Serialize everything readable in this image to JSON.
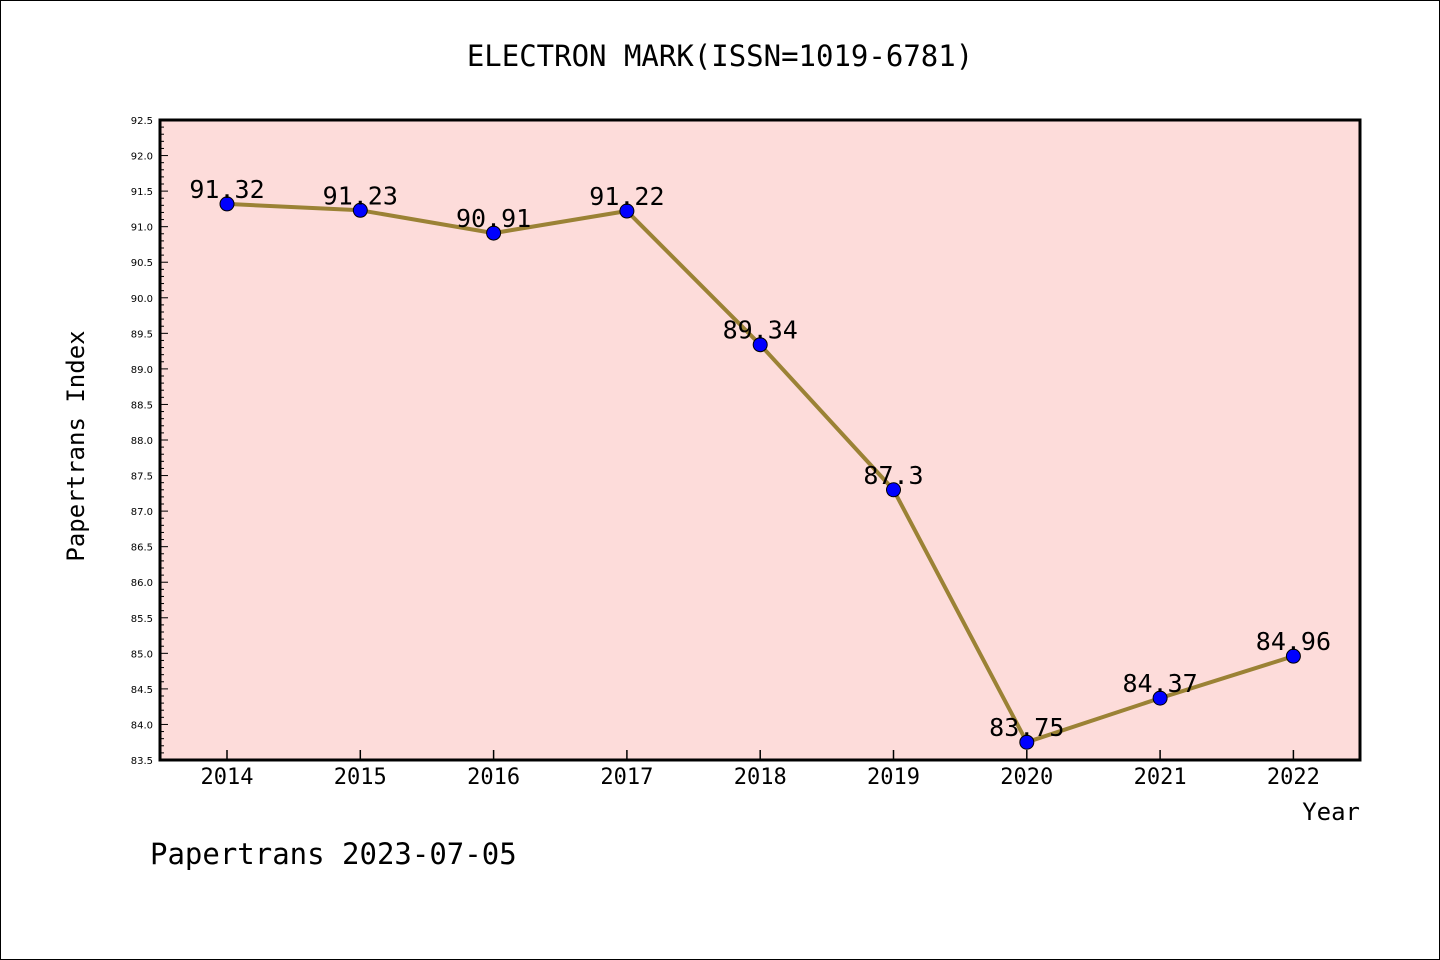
{
  "chart_data": {
    "type": "line",
    "title": "ELECTRON MARK(ISSN=1019-6781)",
    "xlabel": "Year",
    "ylabel": "Papertrans Index",
    "ylim": [
      83.5,
      92.5
    ],
    "y_ticks": [
      "83.5",
      "84.0",
      "84.5",
      "85.0",
      "85.5",
      "86.0",
      "86.5",
      "87.0",
      "87.5",
      "88.0",
      "88.5",
      "89.0",
      "89.5",
      "90.0",
      "90.5",
      "91.0",
      "91.5",
      "92.0",
      "92.5"
    ],
    "categories": [
      "2014",
      "2015",
      "2016",
      "2017",
      "2018",
      "2019",
      "2020",
      "2021",
      "2022"
    ],
    "values": [
      91.32,
      91.23,
      90.91,
      91.22,
      89.34,
      87.3,
      83.75,
      84.37,
      84.96
    ],
    "value_labels": [
      "91.32",
      "91.23",
      "90.91",
      "91.22",
      "89.34",
      "87.3",
      "83.75",
      "84.37",
      "84.96"
    ],
    "grid": false,
    "colors": {
      "plot_background": "#fddcda",
      "line": "#9b8235",
      "marker": "#0000ff"
    }
  },
  "footer": "Papertrans 2023-07-05"
}
